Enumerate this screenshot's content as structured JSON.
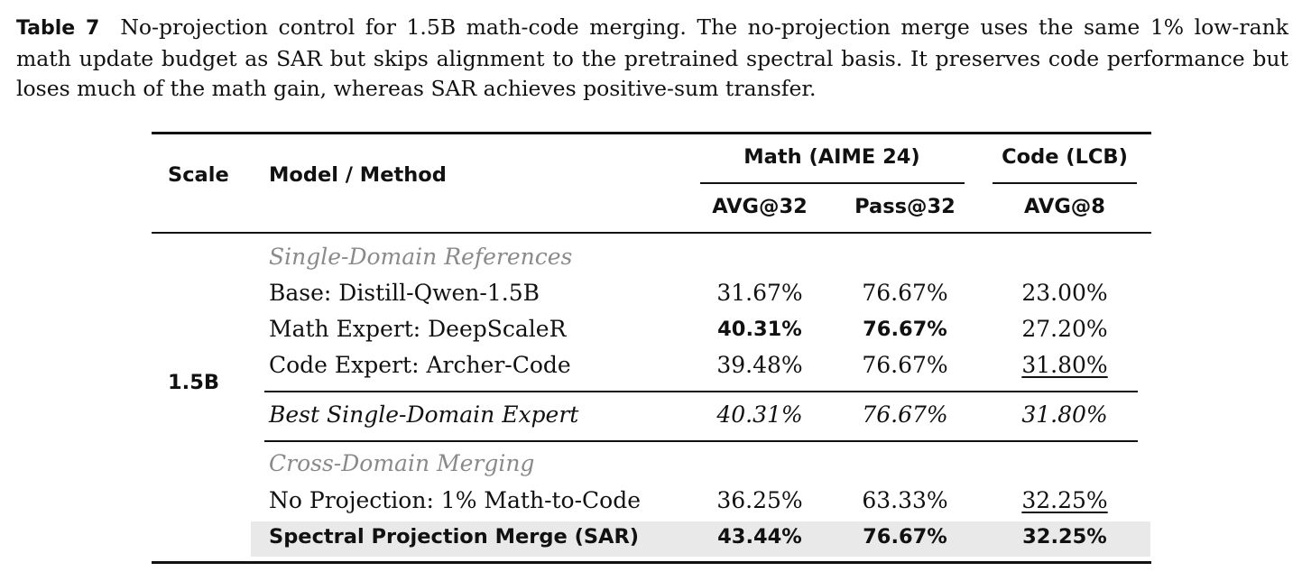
{
  "caption": {
    "label": "Table 7",
    "text": "No-projection control for 1.5B math-code merging. The no-projection merge uses the same 1% low-rank math update budget as SAR but skips alignment to the pretrained spectral basis. It preserves code performance but loses much of the math gain, whereas SAR achieves positive-sum transfer."
  },
  "table": {
    "header": {
      "scale": "Scale",
      "method": "Model / Method",
      "math_group": "Math (AIME 24)",
      "code_group": "Code (LCB)",
      "math_avg": "AVG@32",
      "math_pass": "Pass@32",
      "code_avg": "AVG@8"
    },
    "scale_value": "1.5B",
    "sections": {
      "single_domain": "Single-Domain References",
      "cross_domain": "Cross-Domain Merging"
    },
    "rows": [
      {
        "method": "Base: Distill-Qwen-1.5B",
        "math_avg": "31.67%",
        "math_pass": "76.67%",
        "code_avg": "23.00%"
      },
      {
        "method": "Math Expert: DeepScaleR",
        "math_avg": "40.31%",
        "math_pass": "76.67%",
        "code_avg": "27.20%"
      },
      {
        "method": "Code Expert: Archer-Code",
        "math_avg": "39.48%",
        "math_pass": "76.67%",
        "code_avg": "31.80%"
      },
      {
        "method": "Best Single-Domain Expert",
        "math_avg": "40.31%",
        "math_pass": "76.67%",
        "code_avg": "31.80%"
      },
      {
        "method": "No Projection: 1% Math-to-Code",
        "math_avg": "36.25%",
        "math_pass": "63.33%",
        "code_avg": "32.25%"
      },
      {
        "method": "Spectral Projection Merge (SAR)",
        "math_avg": "43.44%",
        "math_pass": "76.67%",
        "code_avg": "32.25%"
      }
    ]
  }
}
